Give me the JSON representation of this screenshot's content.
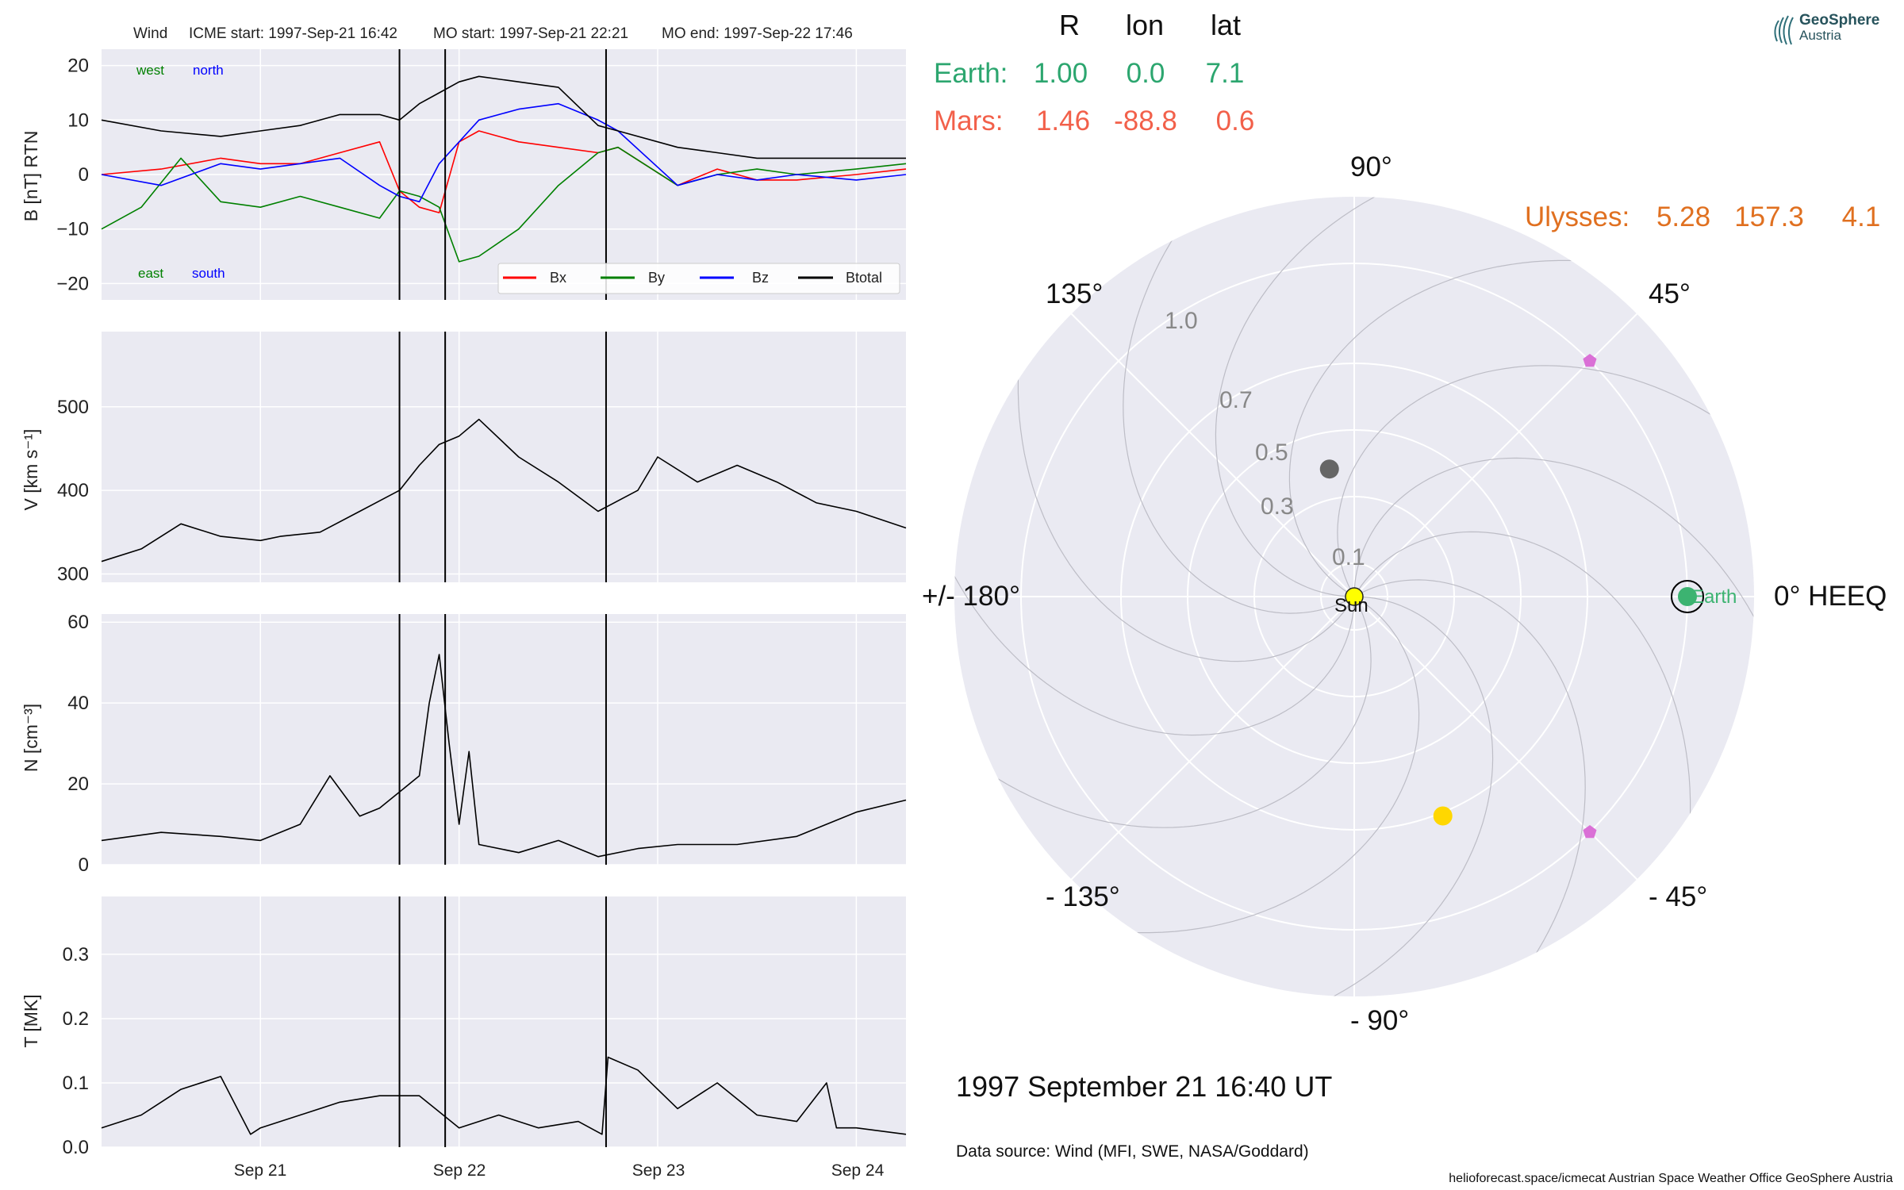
{
  "logo": {
    "brand": "GeoSphere",
    "sub": "Austria"
  },
  "header": {
    "spacecraft": "Wind",
    "icme_start": "ICME start: 1997-Sep-21 16:42",
    "mo_start": "MO start: 1997-Sep-21 22:21",
    "mo_end": "MO end: 1997-Sep-22 17:46"
  },
  "table": {
    "headers": [
      "R",
      "lon",
      "lat"
    ],
    "earth": {
      "label": "Earth:",
      "R": "1.00",
      "lon": "0.0",
      "lat": "7.1",
      "color": "#2ca66f"
    },
    "mars": {
      "label": "Mars:",
      "R": "1.46",
      "lon": "-88.8",
      "lat": "0.6",
      "color": "#f2604a"
    },
    "ulysses": {
      "label": "Ulysses:",
      "R": "5.28",
      "lon": "157.3",
      "lat": "4.1",
      "color": "#e07020"
    }
  },
  "polar": {
    "angle_labels": {
      "a0": "0° HEEQ",
      "a45": "45°",
      "a90": "90°",
      "a135": "135°",
      "a180": "+/- 180°",
      "am135": "- 135°",
      "am90": "- 90°",
      "am45": "- 45°"
    },
    "radius_labels": [
      "0.1",
      "0.3",
      "0.5",
      "0.7",
      "1.0"
    ],
    "radii": [
      0.1,
      0.3,
      0.5,
      0.7,
      1.0
    ],
    "rmax": 1.2,
    "sun_label": "Sun",
    "earth_label": "Earth",
    "bodies": [
      {
        "name": "Earth",
        "r": 1.0,
        "lon": 0,
        "color": "#3cb371"
      },
      {
        "name": "Mercury",
        "r": 0.39,
        "lon": 101,
        "color": "#666666"
      },
      {
        "name": "Venus",
        "r": 0.71,
        "lon": -68,
        "color": "#ffd700"
      },
      {
        "name": "STEREO-A",
        "r": 1.0,
        "lon": 45,
        "color": "#da70d6"
      },
      {
        "name": "STEREO-B",
        "r": 1.0,
        "lon": -45,
        "color": "#da70d6"
      }
    ]
  },
  "time_label": "1997 September 21  16:40 UT",
  "data_source": "Data source: Wind (MFI, SWE, NASA/Goddard)",
  "footer": "helioforecast.space/icmecat   Austrian Space Weather Office   GeoSphere Austria",
  "chart_data": [
    {
      "type": "line",
      "ylabel": "B [nT] RTN",
      "ylim": [
        -23,
        23
      ],
      "yticks": [
        -20,
        -10,
        0,
        10,
        20
      ],
      "annotations": {
        "west": "west",
        "north": "north",
        "east": "east",
        "south": "south"
      },
      "legend": {
        "placement": "bottom-right"
      },
      "series": [
        {
          "name": "Bx",
          "color": "#ff0000",
          "x": [
            20.2,
            20.5,
            20.8,
            21.0,
            21.2,
            21.4,
            21.6,
            21.7,
            21.8,
            21.9,
            22.0,
            22.1,
            22.3,
            22.5,
            22.7,
            22.8,
            23.1,
            23.3,
            23.5,
            23.7,
            24.0,
            24.25
          ],
          "y": [
            0,
            1,
            3,
            2,
            2,
            4,
            6,
            -3,
            -6,
            -7,
            6,
            8,
            6,
            5,
            4,
            5,
            -2,
            1,
            -1,
            -1,
            0,
            1
          ]
        },
        {
          "name": "By",
          "color": "#008000",
          "x": [
            20.2,
            20.4,
            20.6,
            20.8,
            21.0,
            21.2,
            21.4,
            21.6,
            21.7,
            21.8,
            21.9,
            22.0,
            22.1,
            22.3,
            22.5,
            22.7,
            22.8,
            23.1,
            23.3,
            23.5,
            23.7,
            24.0,
            24.25
          ],
          "y": [
            -10,
            -6,
            3,
            -5,
            -6,
            -4,
            -6,
            -8,
            -3,
            -4,
            -6,
            -16,
            -15,
            -10,
            -2,
            4,
            5,
            -2,
            0,
            1,
            0,
            1,
            2
          ]
        },
        {
          "name": "Bz",
          "color": "#0000ff",
          "x": [
            20.2,
            20.5,
            20.8,
            21.0,
            21.2,
            21.4,
            21.6,
            21.7,
            21.8,
            21.9,
            22.0,
            22.1,
            22.3,
            22.5,
            22.7,
            22.8,
            23.1,
            23.3,
            23.5,
            23.7,
            24.0,
            24.25
          ],
          "y": [
            0,
            -2,
            2,
            1,
            2,
            3,
            -2,
            -4,
            -5,
            2,
            6,
            10,
            12,
            13,
            10,
            8,
            -2,
            0,
            -1,
            0,
            -1,
            0
          ]
        },
        {
          "name": "Btotal",
          "color": "#000000",
          "x": [
            20.2,
            20.5,
            20.8,
            21.0,
            21.2,
            21.4,
            21.6,
            21.7,
            21.8,
            21.9,
            22.0,
            22.1,
            22.3,
            22.5,
            22.7,
            22.8,
            23.1,
            23.3,
            23.5,
            23.7,
            24.0,
            24.25
          ],
          "y": [
            10,
            8,
            7,
            8,
            9,
            11,
            11,
            10,
            13,
            15,
            17,
            18,
            17,
            16,
            9,
            8,
            5,
            4,
            3,
            3,
            3,
            3
          ]
        }
      ]
    },
    {
      "type": "line",
      "ylabel": "V [km s⁻¹]",
      "ylim": [
        290,
        590
      ],
      "yticks": [
        300,
        400,
        500
      ],
      "series": [
        {
          "name": "V",
          "color": "#000000",
          "x": [
            20.2,
            20.4,
            20.6,
            20.8,
            21.0,
            21.1,
            21.3,
            21.5,
            21.7,
            21.8,
            21.9,
            22.0,
            22.1,
            22.3,
            22.5,
            22.7,
            22.9,
            23.0,
            23.2,
            23.4,
            23.6,
            23.8,
            24.0,
            24.25
          ],
          "y": [
            315,
            330,
            360,
            345,
            340,
            345,
            350,
            375,
            400,
            430,
            455,
            465,
            485,
            440,
            410,
            375,
            400,
            440,
            410,
            430,
            410,
            385,
            375,
            355
          ]
        }
      ]
    },
    {
      "type": "line",
      "ylabel": "N [cm⁻³]",
      "ylim": [
        0,
        62
      ],
      "yticks": [
        0,
        20,
        40,
        60
      ],
      "series": [
        {
          "name": "N",
          "color": "#000000",
          "x": [
            20.2,
            20.5,
            20.8,
            21.0,
            21.2,
            21.35,
            21.5,
            21.6,
            21.7,
            21.8,
            21.85,
            21.9,
            21.95,
            22.0,
            22.05,
            22.1,
            22.3,
            22.5,
            22.7,
            22.9,
            23.1,
            23.4,
            23.7,
            24.0,
            24.25
          ],
          "y": [
            6,
            8,
            7,
            6,
            10,
            22,
            12,
            14,
            18,
            22,
            40,
            52,
            30,
            10,
            28,
            5,
            3,
            6,
            2,
            4,
            5,
            5,
            7,
            13,
            16
          ]
        }
      ]
    },
    {
      "type": "line",
      "ylabel": "T [MK]",
      "ylim": [
        0,
        0.39
      ],
      "yticks": [
        0.0,
        0.1,
        0.2,
        0.3
      ],
      "xticks": [
        21,
        22,
        23,
        24
      ],
      "xticklabels": [
        "Sep 21",
        "Sep 22",
        "Sep 23",
        "Sep 24"
      ],
      "xlim": [
        20.2,
        24.25
      ],
      "series": [
        {
          "name": "T",
          "color": "#000000",
          "x": [
            20.2,
            20.4,
            20.6,
            20.8,
            20.95,
            21.0,
            21.2,
            21.4,
            21.6,
            21.8,
            22.0,
            22.2,
            22.4,
            22.6,
            22.72,
            22.75,
            22.9,
            23.1,
            23.3,
            23.5,
            23.7,
            23.85,
            23.9,
            24.0,
            24.25
          ],
          "y": [
            0.03,
            0.05,
            0.09,
            0.11,
            0.02,
            0.03,
            0.05,
            0.07,
            0.08,
            0.08,
            0.03,
            0.05,
            0.03,
            0.04,
            0.02,
            0.14,
            0.12,
            0.06,
            0.1,
            0.05,
            0.04,
            0.1,
            0.03,
            0.03,
            0.02
          ]
        }
      ]
    }
  ],
  "event_lines": [
    21.7,
    21.93,
    22.74
  ]
}
